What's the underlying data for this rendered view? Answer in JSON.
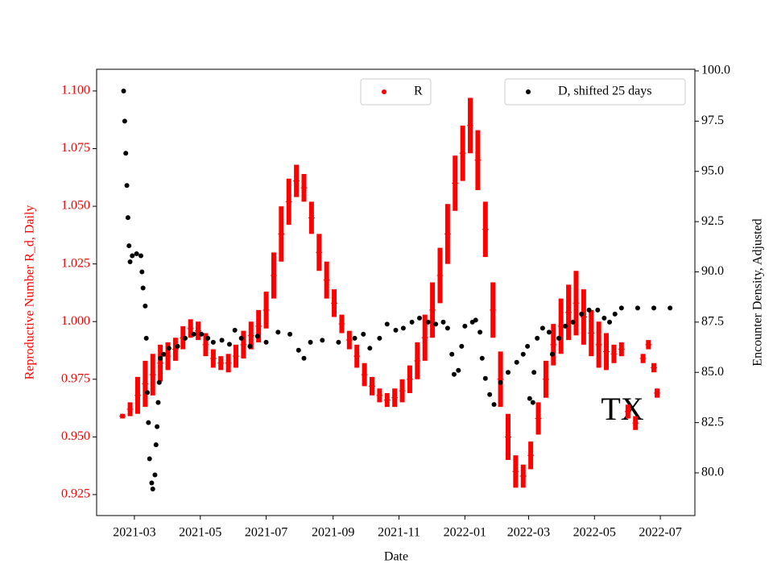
{
  "chart_data": {
    "type": "errorbar_scatter",
    "annotation": "TX",
    "xlabel": "Date",
    "ylabel": "Reproductive Number R_d, Daily",
    "y2label": "Encounter Density, Adjusted",
    "xlim": [
      "2021-01-25",
      "2022-08-02"
    ],
    "xticks": [
      {
        "value": "2021-03-01",
        "label": "2021-03"
      },
      {
        "value": "2021-05-01",
        "label": "2021-05"
      },
      {
        "value": "2021-07-01",
        "label": "2021-07"
      },
      {
        "value": "2021-09-01",
        "label": "2021-09"
      },
      {
        "value": "2021-11-01",
        "label": "2021-11"
      },
      {
        "value": "2022-01-01",
        "label": "2022-01"
      },
      {
        "value": "2022-03-01",
        "label": "2022-03"
      },
      {
        "value": "2022-05-01",
        "label": "2022-05"
      },
      {
        "value": "2022-07-01",
        "label": "2022-07"
      }
    ],
    "ylim": [
      0.9159,
      1.1094
    ],
    "yticks": [
      0.925,
      {
        "value": 0.95,
        "label": "0.950"
      },
      0.975,
      {
        "value": 1.0,
        "label": "1.000"
      },
      1.025,
      {
        "value": 1.05,
        "label": "1.050"
      },
      1.075,
      {
        "value": 1.1,
        "label": "1.100"
      }
    ],
    "y2lim": [
      77.876,
      100.08
    ],
    "y2ticks": [
      {
        "value": 80,
        "label": "80.0"
      },
      82.5,
      {
        "value": 85,
        "label": "85.0"
      },
      87.5,
      {
        "value": 90,
        "label": "90.0"
      },
      92.5,
      {
        "value": 95,
        "label": "95.0"
      },
      97.5,
      {
        "value": 100,
        "label": "100.0"
      }
    ],
    "series": [
      {
        "name": "R",
        "color": "#ff0000",
        "axis": "y",
        "legend": "upper center",
        "x": [
          "2021-02-18",
          "2021-02-25",
          "2021-03-04",
          "2021-03-11",
          "2021-03-18",
          "2021-03-25",
          "2021-04-01",
          "2021-04-08",
          "2021-04-15",
          "2021-04-22",
          "2021-04-29",
          "2021-05-06",
          "2021-05-13",
          "2021-05-20",
          "2021-05-27",
          "2021-06-03",
          "2021-06-10",
          "2021-06-17",
          "2021-06-24",
          "2021-07-01",
          "2021-07-08",
          "2021-07-15",
          "2021-07-22",
          "2021-07-29",
          "2021-08-05",
          "2021-08-12",
          "2021-08-19",
          "2021-08-26",
          "2021-09-02",
          "2021-09-09",
          "2021-09-16",
          "2021-09-23",
          "2021-09-30",
          "2021-10-07",
          "2021-10-14",
          "2021-10-21",
          "2021-10-28",
          "2021-11-04",
          "2021-11-11",
          "2021-11-18",
          "2021-11-25",
          "2021-12-02",
          "2021-12-09",
          "2021-12-16",
          "2021-12-23",
          "2021-12-30",
          "2022-01-06",
          "2022-01-13",
          "2022-01-20",
          "2022-01-27",
          "2022-02-03",
          "2022-02-10",
          "2022-02-17",
          "2022-02-24",
          "2022-03-03",
          "2022-03-10",
          "2022-03-17",
          "2022-03-24",
          "2022-03-31",
          "2022-04-07",
          "2022-04-14",
          "2022-04-21",
          "2022-04-28",
          "2022-05-05",
          "2022-05-12",
          "2022-05-19",
          "2022-05-26",
          "2022-06-01",
          "2022-06-08",
          "2022-06-15",
          "2022-06-20",
          "2022-06-25",
          "2022-06-28"
        ],
        "values": [
          0.959,
          0.962,
          0.968,
          0.973,
          0.977,
          0.982,
          0.985,
          0.988,
          0.993,
          0.997,
          0.996,
          0.99,
          0.984,
          0.982,
          0.982,
          0.985,
          0.99,
          0.994,
          0.998,
          1.005,
          1.02,
          1.038,
          1.052,
          1.061,
          1.058,
          1.045,
          1.03,
          1.018,
          1.008,
          0.999,
          0.992,
          0.985,
          0.977,
          0.972,
          0.968,
          0.966,
          0.967,
          0.97,
          0.975,
          0.983,
          0.993,
          1.005,
          1.02,
          1.038,
          1.06,
          1.073,
          1.085,
          1.07,
          1.04,
          1.005,
          0.975,
          0.95,
          0.935,
          0.933,
          0.942,
          0.958,
          0.975,
          0.99,
          0.998,
          1.004,
          1.008,
          1.002,
          0.995,
          0.99,
          0.987,
          0.986,
          0.988,
          0.961,
          0.956,
          0.984,
          0.99,
          0.98,
          0.969
        ],
        "errors": [
          0.001,
          0.003,
          0.008,
          0.01,
          0.009,
          0.008,
          0.006,
          0.005,
          0.005,
          0.004,
          0.004,
          0.005,
          0.004,
          0.003,
          0.004,
          0.005,
          0.006,
          0.006,
          0.007,
          0.008,
          0.01,
          0.012,
          0.01,
          0.007,
          0.006,
          0.007,
          0.008,
          0.008,
          0.006,
          0.004,
          0.004,
          0.005,
          0.005,
          0.004,
          0.003,
          0.003,
          0.004,
          0.005,
          0.006,
          0.008,
          0.01,
          0.012,
          0.012,
          0.013,
          0.012,
          0.012,
          0.012,
          0.013,
          0.012,
          0.012,
          0.012,
          0.01,
          0.007,
          0.005,
          0.006,
          0.007,
          0.008,
          0.009,
          0.012,
          0.012,
          0.014,
          0.012,
          0.01,
          0.01,
          0.008,
          0.004,
          0.003,
          0.003,
          0.003,
          0.002,
          0.002,
          0.002,
          0.002
        ]
      },
      {
        "name": "D, shifted 25 days",
        "color": "#000000",
        "axis": "y2",
        "legend": "upper right",
        "x": [
          "2021-02-19",
          "2021-02-20",
          "2021-02-21",
          "2021-02-22",
          "2021-02-23",
          "2021-02-24",
          "2021-02-25",
          "2021-02-27",
          "2021-03-03",
          "2021-03-07",
          "2021-03-08",
          "2021-03-09",
          "2021-03-11",
          "2021-03-12",
          "2021-03-13",
          "2021-03-14",
          "2021-03-15",
          "2021-03-17",
          "2021-03-18",
          "2021-03-20",
          "2021-03-21",
          "2021-03-22",
          "2021-03-23",
          "2021-03-24",
          "2021-03-25",
          "2021-03-28",
          "2021-04-02",
          "2021-04-10",
          "2021-04-17",
          "2021-04-25",
          "2021-05-02",
          "2021-05-08",
          "2021-05-13",
          "2021-05-21",
          "2021-05-28",
          "2021-06-02",
          "2021-06-08",
          "2021-06-16",
          "2021-06-23",
          "2021-07-01",
          "2021-07-12",
          "2021-07-23",
          "2021-07-31",
          "2021-08-05",
          "2021-08-11",
          "2021-08-22",
          "2021-09-06",
          "2021-09-21",
          "2021-09-29",
          "2021-10-05",
          "2021-10-14",
          "2021-10-21",
          "2021-10-29",
          "2021-11-05",
          "2021-11-13",
          "2021-11-20",
          "2021-11-28",
          "2021-12-05",
          "2021-12-12",
          "2021-12-16",
          "2021-12-20",
          "2021-12-22",
          "2021-12-26",
          "2021-12-29",
          "2022-01-01",
          "2022-01-08",
          "2022-01-11",
          "2022-01-15",
          "2022-01-17",
          "2022-01-20",
          "2022-01-24",
          "2022-01-28",
          "2022-02-03",
          "2022-02-10",
          "2022-02-18",
          "2022-02-24",
          "2022-02-28",
          "2022-03-02",
          "2022-03-05",
          "2022-03-06",
          "2022-03-09",
          "2022-03-14",
          "2022-03-20",
          "2022-03-23",
          "2022-03-29",
          "2022-04-04",
          "2022-04-11",
          "2022-04-19",
          "2022-04-26",
          "2022-05-04",
          "2022-05-10",
          "2022-05-15",
          "2022-05-20",
          "2022-05-26",
          "2022-06-10",
          "2022-06-25",
          "2022-07-10"
        ],
        "values": [
          99.0,
          97.5,
          95.9,
          94.3,
          92.7,
          91.3,
          90.5,
          90.8,
          90.9,
          90.8,
          90.0,
          89.2,
          88.3,
          86.7,
          84.0,
          82.5,
          80.7,
          79.5,
          79.2,
          79.9,
          81.4,
          82.3,
          83.5,
          84.5,
          85.7,
          85.9,
          86.2,
          86.3,
          86.7,
          86.9,
          86.9,
          86.7,
          86.5,
          86.6,
          86.4,
          87.1,
          86.7,
          86.3,
          86.8,
          86.5,
          87.0,
          86.9,
          86.1,
          85.7,
          86.5,
          86.6,
          86.5,
          86.7,
          86.9,
          86.2,
          86.7,
          87.4,
          87.1,
          87.2,
          87.5,
          87.7,
          87.5,
          87.4,
          87.5,
          87.2,
          85.9,
          84.9,
          85.1,
          86.3,
          87.3,
          87.5,
          87.6,
          87.0,
          85.7,
          84.7,
          83.9,
          83.4,
          84.5,
          85.0,
          85.5,
          85.9,
          86.3,
          83.7,
          83.5,
          85.0,
          86.7,
          87.2,
          87.0,
          85.9,
          86.7,
          87.3,
          87.5,
          87.9,
          88.1,
          88.1,
          87.7,
          87.5,
          87.9,
          88.2,
          88.2,
          88.2,
          88.2
        ]
      }
    ]
  }
}
